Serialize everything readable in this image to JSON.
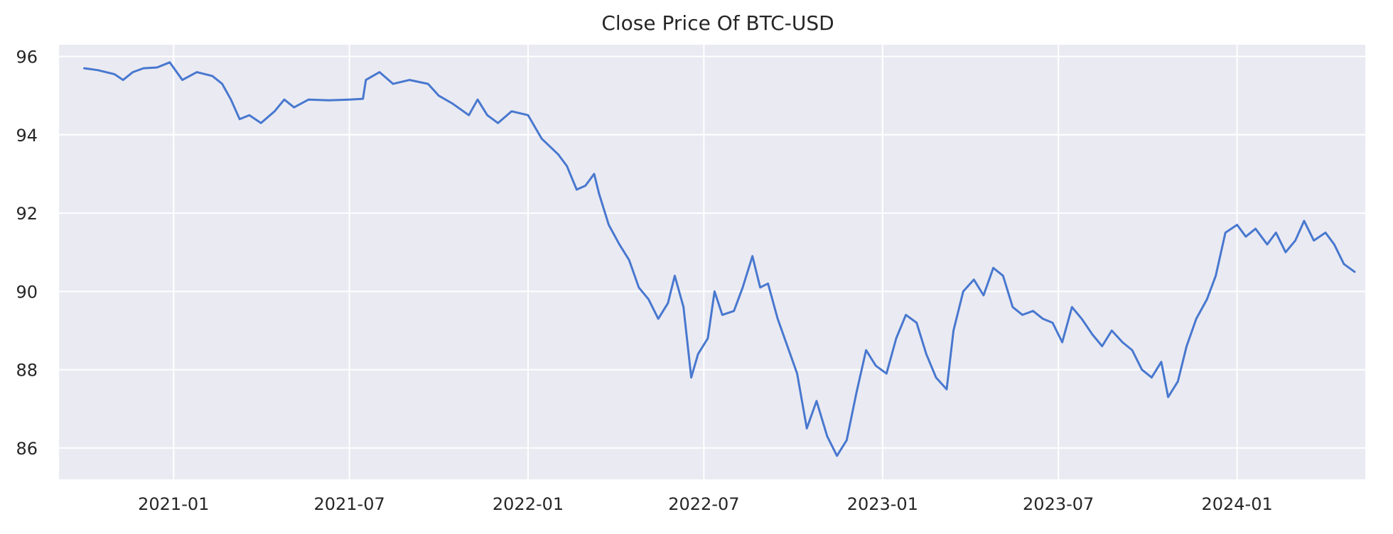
{
  "chart_data": {
    "type": "line",
    "title": "Close Price Of BTC-USD",
    "xlabel": "",
    "ylabel": "",
    "ylim": [
      85.2,
      96.3
    ],
    "xlim": [
      "2020-09-05",
      "2024-05-12"
    ],
    "grid": true,
    "legend": "none",
    "colors": {
      "line": "#4878cf",
      "background": "#eaeaf2",
      "grid": "#ffffff",
      "text": "#262626"
    },
    "x_ticks": [
      {
        "date": "2021-01-01",
        "label": "2021-01"
      },
      {
        "date": "2021-07-01",
        "label": "2021-07"
      },
      {
        "date": "2022-01-01",
        "label": "2022-01"
      },
      {
        "date": "2022-07-01",
        "label": "2022-07"
      },
      {
        "date": "2023-01-01",
        "label": "2023-01"
      },
      {
        "date": "2023-07-01",
        "label": "2023-07"
      },
      {
        "date": "2024-01-01",
        "label": "2024-01"
      }
    ],
    "y_ticks": [
      {
        "value": 86,
        "label": "86"
      },
      {
        "value": 88,
        "label": "88"
      },
      {
        "value": 90,
        "label": "90"
      },
      {
        "value": 92,
        "label": "92"
      },
      {
        "value": 94,
        "label": "94"
      },
      {
        "value": 96,
        "label": "96"
      }
    ],
    "series": [
      {
        "points": [
          [
            "2020-10-01",
            95.7
          ],
          [
            "2020-10-15",
            95.65
          ],
          [
            "2020-11-01",
            95.55
          ],
          [
            "2020-11-10",
            95.4
          ],
          [
            "2020-11-20",
            95.6
          ],
          [
            "2020-12-01",
            95.7
          ],
          [
            "2020-12-15",
            95.72
          ],
          [
            "2020-12-28",
            95.85
          ],
          [
            "2021-01-10",
            95.4
          ],
          [
            "2021-01-25",
            95.6
          ],
          [
            "2021-02-10",
            95.5
          ],
          [
            "2021-02-20",
            95.3
          ],
          [
            "2021-03-01",
            94.9
          ],
          [
            "2021-03-10",
            94.4
          ],
          [
            "2021-03-20",
            94.5
          ],
          [
            "2021-04-01",
            94.3
          ],
          [
            "2021-04-15",
            94.6
          ],
          [
            "2021-04-25",
            94.9
          ],
          [
            "2021-05-05",
            94.7
          ],
          [
            "2021-05-20",
            94.9
          ],
          [
            "2021-06-10",
            94.88
          ],
          [
            "2021-07-01",
            94.9
          ],
          [
            "2021-07-15",
            94.92
          ],
          [
            "2021-07-18",
            95.4
          ],
          [
            "2021-08-01",
            95.6
          ],
          [
            "2021-08-15",
            95.3
          ],
          [
            "2021-09-01",
            95.4
          ],
          [
            "2021-09-20",
            95.3
          ],
          [
            "2021-10-01",
            95.0
          ],
          [
            "2021-10-15",
            94.8
          ],
          [
            "2021-11-01",
            94.5
          ],
          [
            "2021-11-10",
            94.9
          ],
          [
            "2021-11-20",
            94.5
          ],
          [
            "2021-12-01",
            94.3
          ],
          [
            "2021-12-15",
            94.6
          ],
          [
            "2022-01-01",
            94.5
          ],
          [
            "2022-01-15",
            93.9
          ],
          [
            "2022-02-01",
            93.5
          ],
          [
            "2022-02-10",
            93.2
          ],
          [
            "2022-02-20",
            92.6
          ],
          [
            "2022-03-01",
            92.7
          ],
          [
            "2022-03-10",
            93.0
          ],
          [
            "2022-03-15",
            92.5
          ],
          [
            "2022-03-25",
            91.7
          ],
          [
            "2022-04-05",
            91.2
          ],
          [
            "2022-04-15",
            90.8
          ],
          [
            "2022-04-25",
            90.1
          ],
          [
            "2022-05-05",
            89.8
          ],
          [
            "2022-05-15",
            89.3
          ],
          [
            "2022-05-25",
            89.7
          ],
          [
            "2022-06-01",
            90.4
          ],
          [
            "2022-06-10",
            89.6
          ],
          [
            "2022-06-18",
            87.8
          ],
          [
            "2022-06-25",
            88.4
          ],
          [
            "2022-07-05",
            88.8
          ],
          [
            "2022-07-12",
            90.0
          ],
          [
            "2022-07-20",
            89.4
          ],
          [
            "2022-08-01",
            89.5
          ],
          [
            "2022-08-10",
            90.1
          ],
          [
            "2022-08-20",
            90.9
          ],
          [
            "2022-08-28",
            90.1
          ],
          [
            "2022-09-05",
            90.2
          ],
          [
            "2022-09-15",
            89.3
          ],
          [
            "2022-09-25",
            88.6
          ],
          [
            "2022-10-05",
            87.9
          ],
          [
            "2022-10-15",
            86.5
          ],
          [
            "2022-10-25",
            87.2
          ],
          [
            "2022-11-05",
            86.3
          ],
          [
            "2022-11-15",
            85.8
          ],
          [
            "2022-11-25",
            86.2
          ],
          [
            "2022-12-05",
            87.4
          ],
          [
            "2022-12-15",
            88.5
          ],
          [
            "2022-12-25",
            88.1
          ],
          [
            "2023-01-05",
            87.9
          ],
          [
            "2023-01-15",
            88.8
          ],
          [
            "2023-01-25",
            89.4
          ],
          [
            "2023-02-05",
            89.2
          ],
          [
            "2023-02-15",
            88.4
          ],
          [
            "2023-02-25",
            87.8
          ],
          [
            "2023-03-08",
            87.5
          ],
          [
            "2023-03-15",
            89.0
          ],
          [
            "2023-03-25",
            90.0
          ],
          [
            "2023-04-05",
            90.3
          ],
          [
            "2023-04-15",
            89.9
          ],
          [
            "2023-04-25",
            90.6
          ],
          [
            "2023-05-05",
            90.4
          ],
          [
            "2023-05-15",
            89.6
          ],
          [
            "2023-05-25",
            89.4
          ],
          [
            "2023-06-05",
            89.5
          ],
          [
            "2023-06-15",
            89.3
          ],
          [
            "2023-06-25",
            89.2
          ],
          [
            "2023-07-05",
            88.7
          ],
          [
            "2023-07-15",
            89.6
          ],
          [
            "2023-07-25",
            89.3
          ],
          [
            "2023-08-05",
            88.9
          ],
          [
            "2023-08-15",
            88.6
          ],
          [
            "2023-08-25",
            89.0
          ],
          [
            "2023-09-05",
            88.7
          ],
          [
            "2023-09-15",
            88.5
          ],
          [
            "2023-09-25",
            88.0
          ],
          [
            "2023-10-05",
            87.8
          ],
          [
            "2023-10-15",
            88.2
          ],
          [
            "2023-10-22",
            87.3
          ],
          [
            "2023-11-01",
            87.7
          ],
          [
            "2023-11-10",
            88.6
          ],
          [
            "2023-11-20",
            89.3
          ],
          [
            "2023-12-01",
            89.8
          ],
          [
            "2023-12-10",
            90.4
          ],
          [
            "2023-12-20",
            91.5
          ],
          [
            "2024-01-01",
            91.7
          ],
          [
            "2024-01-10",
            91.4
          ],
          [
            "2024-01-20",
            91.6
          ],
          [
            "2024-02-01",
            91.2
          ],
          [
            "2024-02-10",
            91.5
          ],
          [
            "2024-02-20",
            91.0
          ],
          [
            "2024-03-01",
            91.3
          ],
          [
            "2024-03-10",
            91.8
          ],
          [
            "2024-03-20",
            91.3
          ],
          [
            "2024-04-01",
            91.5
          ],
          [
            "2024-04-10",
            91.2
          ],
          [
            "2024-04-20",
            90.7
          ],
          [
            "2024-05-01",
            90.5
          ]
        ]
      }
    ]
  }
}
